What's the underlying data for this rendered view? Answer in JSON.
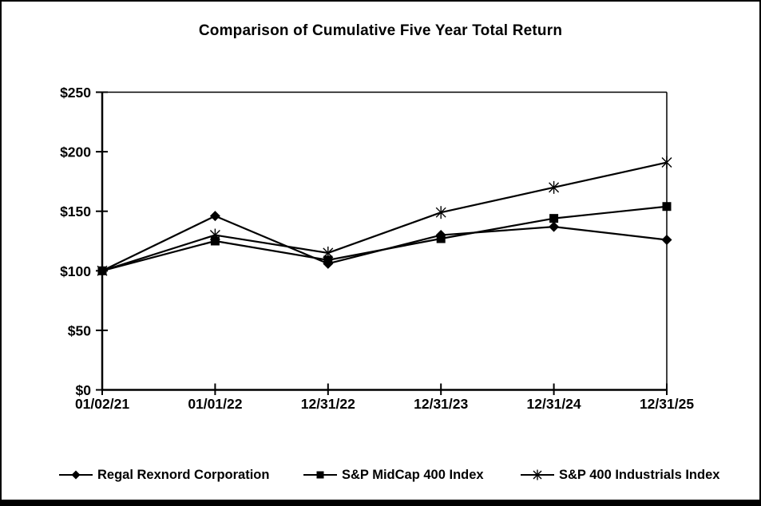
{
  "chart_data": {
    "type": "line",
    "title": "Comparison of Cumulative Five Year Total Return",
    "categories": [
      "01/02/21",
      "01/01/22",
      "12/31/22",
      "12/31/23",
      "12/31/24",
      "12/31/25"
    ],
    "series": [
      {
        "name": "Regal Rexnord Corporation",
        "marker": "diamond",
        "values": [
          100,
          146,
          106,
          130,
          137,
          126
        ]
      },
      {
        "name": "S&P MidCap 400 Index",
        "marker": "square",
        "values": [
          100,
          125,
          109,
          127,
          144,
          154
        ]
      },
      {
        "name": "S&P 400 Industrials Index",
        "marker": "star",
        "values": [
          100,
          130,
          115,
          149,
          170,
          191
        ]
      }
    ],
    "xlabel": "",
    "ylabel": "",
    "ylim": [
      0,
      250
    ],
    "y_ticks": [
      0,
      50,
      100,
      150,
      200,
      250
    ],
    "y_tick_labels": [
      "$0",
      "$50",
      "$100",
      "$150",
      "$200",
      "$250"
    ],
    "grid": false,
    "legend_position": "bottom",
    "line_color": "#000000",
    "background_color": "#ffffff"
  }
}
